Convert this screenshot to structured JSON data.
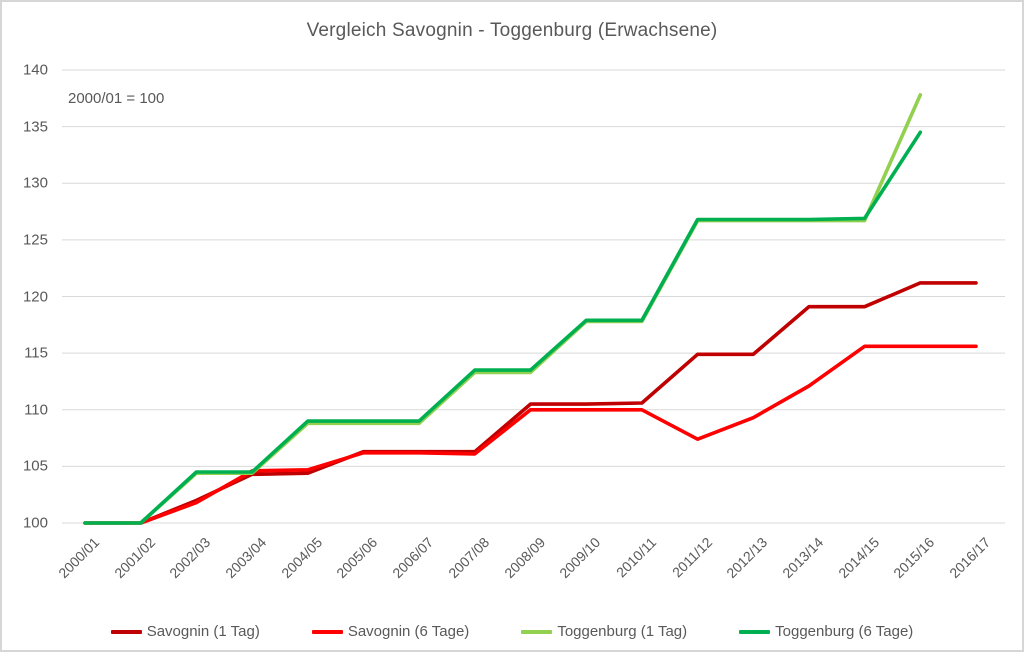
{
  "chart_data": {
    "type": "line",
    "title": "Vergleich Savognin - Toggenburg (Erwachsene)",
    "annotation": "2000/01 = 100",
    "categories": [
      "2000/01",
      "2001/02",
      "2002/03",
      "2003/04",
      "2004/05",
      "2005/06",
      "2006/07",
      "2007/08",
      "2008/09",
      "2009/10",
      "2010/11",
      "2011/12",
      "2012/13",
      "2013/14",
      "2014/15",
      "2015/16",
      "2016/17"
    ],
    "series": [
      {
        "name": "Savognin (1 Tag)",
        "color": "#c00000",
        "values": [
          100,
          100,
          102.0,
          104.3,
          104.4,
          106.3,
          106.3,
          106.3,
          110.5,
          110.5,
          110.6,
          114.9,
          114.9,
          119.1,
          119.1,
          121.2,
          121.2
        ]
      },
      {
        "name": "Savognin (6 Tage)",
        "color": "#ff0000",
        "values": [
          100,
          100,
          101.8,
          104.6,
          104.7,
          106.2,
          106.2,
          106.1,
          110.0,
          110.0,
          110.0,
          107.4,
          109.3,
          112.1,
          115.6,
          115.6,
          115.6
        ]
      },
      {
        "name": "Toggenburg (1 Tag)",
        "color": "#92d050",
        "values": [
          100,
          100,
          104.4,
          104.4,
          108.8,
          108.8,
          108.8,
          113.3,
          113.3,
          117.8,
          117.8,
          126.7,
          126.7,
          126.7,
          126.7,
          137.8,
          null
        ]
      },
      {
        "name": "Toggenburg (6 Tage)",
        "color": "#00b050",
        "values": [
          100,
          100,
          104.5,
          104.5,
          109.0,
          109.0,
          109.0,
          113.5,
          113.5,
          117.9,
          117.9,
          126.8,
          126.8,
          126.8,
          126.9,
          134.5,
          null
        ]
      }
    ],
    "yticks": [
      100,
      105,
      110,
      115,
      120,
      125,
      130,
      135,
      140
    ],
    "ylim": [
      100,
      140
    ],
    "grid": true,
    "gridline_color": "#d9d9d9",
    "legend_position": "bottom"
  }
}
